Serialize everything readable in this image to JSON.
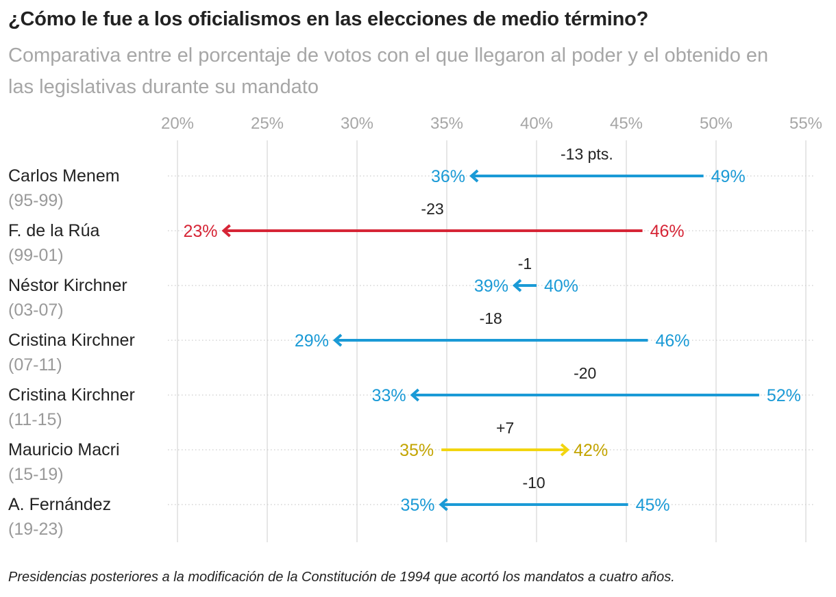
{
  "title": "¿Cómo le fue a los oficialismos en las elecciones de medio término?",
  "subtitle": "Comparativa entre el porcentaje de votos con el que llegaron al poder y el obtenido en las legislativas durante su mandato",
  "footnote": "Presidencias posteriores a la modificación de la Constitución de 1994 que acortó los mandatos a cuatro años.",
  "colors": {
    "blue": "#1a9ad6",
    "red": "#d62536",
    "yellow": "#f2d50f",
    "yellow_text": "#c3a400",
    "grid": "#dddddd",
    "label": "#222222",
    "period": "#999999",
    "tick": "#a6a6a6"
  },
  "chart_data": {
    "type": "arrow",
    "xlim": [
      20,
      55
    ],
    "ticks": [
      20,
      25,
      30,
      35,
      40,
      45,
      50,
      55
    ],
    "tick_labels": [
      "20%",
      "25%",
      "30%",
      "35%",
      "40%",
      "45%",
      "50%",
      "55%"
    ],
    "rows": [
      {
        "name": "Carlos Menem",
        "period": "(95-99)",
        "from": 49.3,
        "to": 36.3,
        "from_label": "49%",
        "to_label": "36%",
        "diff_label": "-13 pts.",
        "color": "blue"
      },
      {
        "name": "F. de la Rúa",
        "period": "(99-01)",
        "from": 45.9,
        "to": 22.5,
        "from_label": "46%",
        "to_label": "23%",
        "diff_label": "-23",
        "color": "red"
      },
      {
        "name": "Néstor Kirchner",
        "period": "(03-07)",
        "from": 40.0,
        "to": 38.7,
        "from_label": "40%",
        "to_label": "39%",
        "diff_label": "-1",
        "color": "blue"
      },
      {
        "name": "Cristina Kirchner",
        "period": "(07-11)",
        "from": 46.2,
        "to": 28.7,
        "from_label": "46%",
        "to_label": "29%",
        "diff_label": "-18",
        "color": "blue"
      },
      {
        "name": "Cristina Kirchner",
        "period": "(11-15)",
        "from": 52.4,
        "to": 33.0,
        "from_label": "52%",
        "to_label": "33%",
        "diff_label": "-20",
        "color": "blue"
      },
      {
        "name": "Mauricio Macri",
        "period": "(15-19)",
        "from": 34.7,
        "to": 41.8,
        "from_label": "35%",
        "to_label": "42%",
        "diff_label": "+7",
        "color": "yellow"
      },
      {
        "name": "A. Fernández",
        "period": "(19-23)",
        "from": 45.1,
        "to": 34.6,
        "from_label": "45%",
        "to_label": "35%",
        "diff_label": "-10",
        "color": "blue"
      }
    ]
  }
}
